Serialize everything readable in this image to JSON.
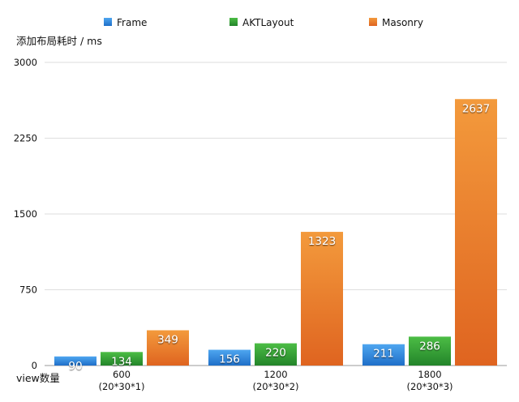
{
  "chart_data": {
    "type": "bar",
    "ylabel": "添加布局耗时 / ms",
    "xlabel": "view数量",
    "ylim": [
      0,
      3000
    ],
    "yticks": [
      0,
      750,
      1500,
      2250,
      3000
    ],
    "grid": true,
    "legend_position": "top",
    "categories": [
      {
        "line1": "600",
        "line2": "(20*30*1)"
      },
      {
        "line1": "1200",
        "line2": "(20*30*2)"
      },
      {
        "line1": "1800",
        "line2": "(20*30*3)"
      }
    ],
    "series": [
      {
        "name": "Frame",
        "color": "#2f86d8",
        "values": [
          90,
          156,
          211
        ]
      },
      {
        "name": "AKTLayout",
        "color": "#2f9d32",
        "values": [
          134,
          220,
          286
        ]
      },
      {
        "name": "Masonry",
        "color": "#e8782b",
        "values": [
          349,
          1323,
          2637
        ]
      }
    ]
  }
}
